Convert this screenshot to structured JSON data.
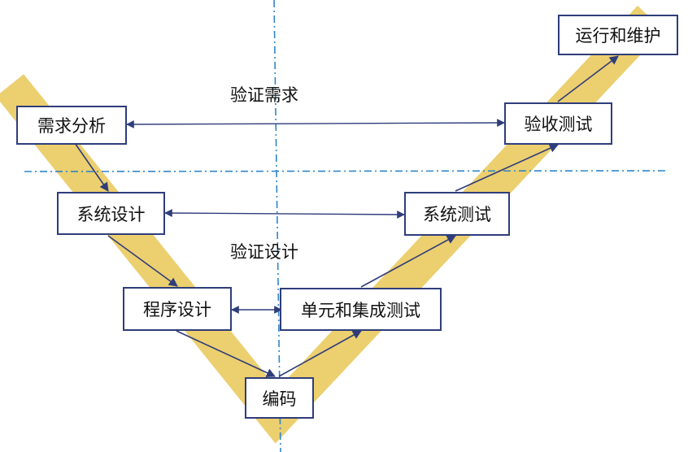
{
  "nodes": {
    "requirements_analysis": "需求分析",
    "system_design": "系统设计",
    "program_design": "程序设计",
    "coding": "编码",
    "unit_integration_test": "单元和集成测试",
    "system_test": "系统测试",
    "acceptance_test": "验收测试",
    "operation_maintenance": "运行和维护"
  },
  "captions": {
    "verify_requirements": "验证需求",
    "verify_design": "验证设计"
  },
  "colors": {
    "v_band": "#eccf6f",
    "arrow": "#2f3d7a",
    "guide_line": "#2f86c9",
    "box_border": "#2f3d7a"
  }
}
